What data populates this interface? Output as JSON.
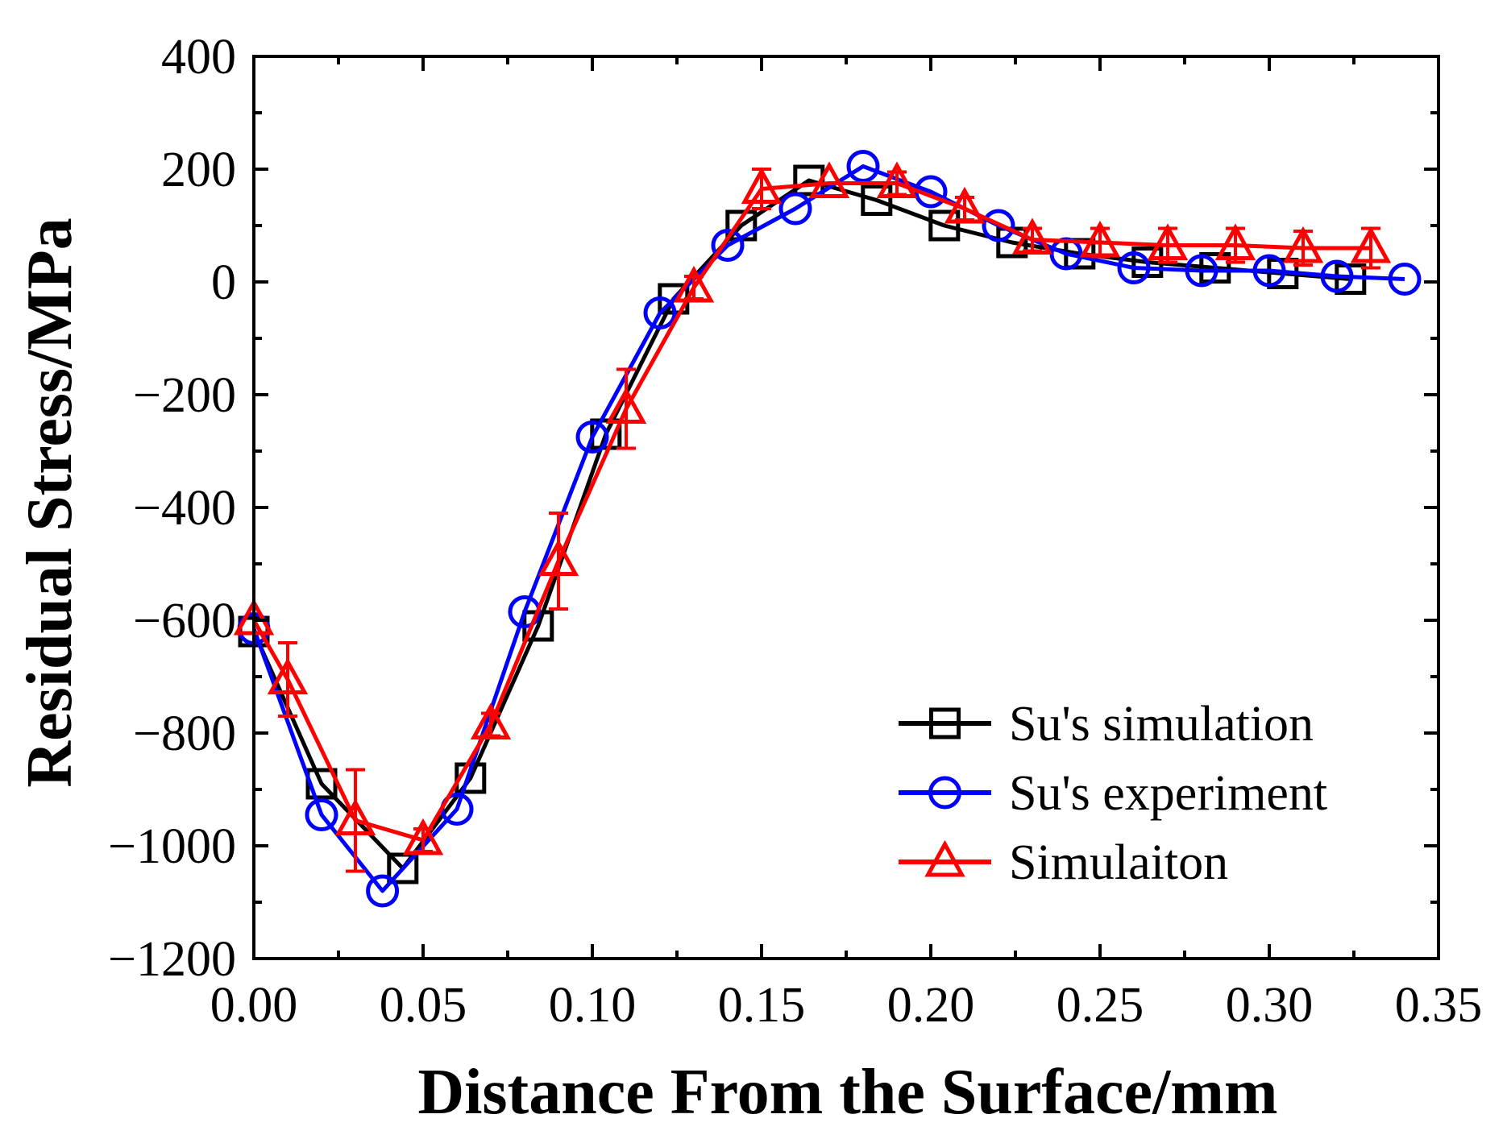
{
  "chart_data": {
    "type": "line",
    "title": "",
    "xlabel": "Distance From the Surface/mm",
    "ylabel": "Residual Stress/MPa",
    "xlim": [
      0.0,
      0.35
    ],
    "ylim": [
      -1200,
      400
    ],
    "xticks": [
      0.0,
      0.05,
      0.1,
      0.15,
      0.2,
      0.25,
      0.3,
      0.35
    ],
    "xtick_labels": [
      "0.00",
      "0.05",
      "0.10",
      "0.15",
      "0.20",
      "0.25",
      "0.30",
      "0.35"
    ],
    "yticks": [
      -1200,
      -1000,
      -800,
      -600,
      -400,
      -200,
      0,
      200,
      400
    ],
    "ytick_labels": [
      "−1200",
      "−1000",
      "−800",
      "−600",
      "−400",
      "−200",
      "0",
      "200",
      "400"
    ],
    "grid": false,
    "legend_position": "bottom-right",
    "series": [
      {
        "name": "Su's simulation",
        "color": "#000000",
        "marker": "square",
        "x": [
          0.0,
          0.02,
          0.044,
          0.064,
          0.084,
          0.104,
          0.124,
          0.144,
          0.164,
          0.184,
          0.204,
          0.224,
          0.244,
          0.264,
          0.284,
          0.304,
          0.324
        ],
        "y": [
          -620,
          -890,
          -1040,
          -880,
          -610,
          -270,
          -30,
          100,
          180,
          145,
          100,
          70,
          50,
          35,
          25,
          15,
          5
        ]
      },
      {
        "name": "Su's experiment",
        "color": "#0000ff",
        "marker": "circle",
        "x": [
          0.0,
          0.02,
          0.038,
          0.06,
          0.08,
          0.1,
          0.12,
          0.14,
          0.16,
          0.18,
          0.2,
          0.22,
          0.24,
          0.26,
          0.28,
          0.3,
          0.32,
          0.34
        ],
        "y": [
          -615,
          -945,
          -1080,
          -935,
          -585,
          -275,
          -55,
          65,
          130,
          205,
          160,
          100,
          50,
          25,
          20,
          20,
          10,
          5
        ]
      },
      {
        "name": "Simulaiton",
        "color": "#ff0000",
        "marker": "triangle",
        "x": [
          0.0,
          0.01,
          0.03,
          0.05,
          0.07,
          0.09,
          0.11,
          0.13,
          0.15,
          0.17,
          0.19,
          0.21,
          0.23,
          0.25,
          0.27,
          0.29,
          0.31,
          0.33
        ],
        "y": [
          -600,
          -705,
          -955,
          -990,
          -785,
          -495,
          -225,
          -10,
          165,
          175,
          175,
          130,
          75,
          70,
          65,
          65,
          60,
          60
        ],
        "error": [
          0,
          65,
          90,
          20,
          20,
          85,
          70,
          20,
          35,
          0,
          20,
          20,
          20,
          25,
          30,
          30,
          30,
          35
        ]
      }
    ]
  }
}
